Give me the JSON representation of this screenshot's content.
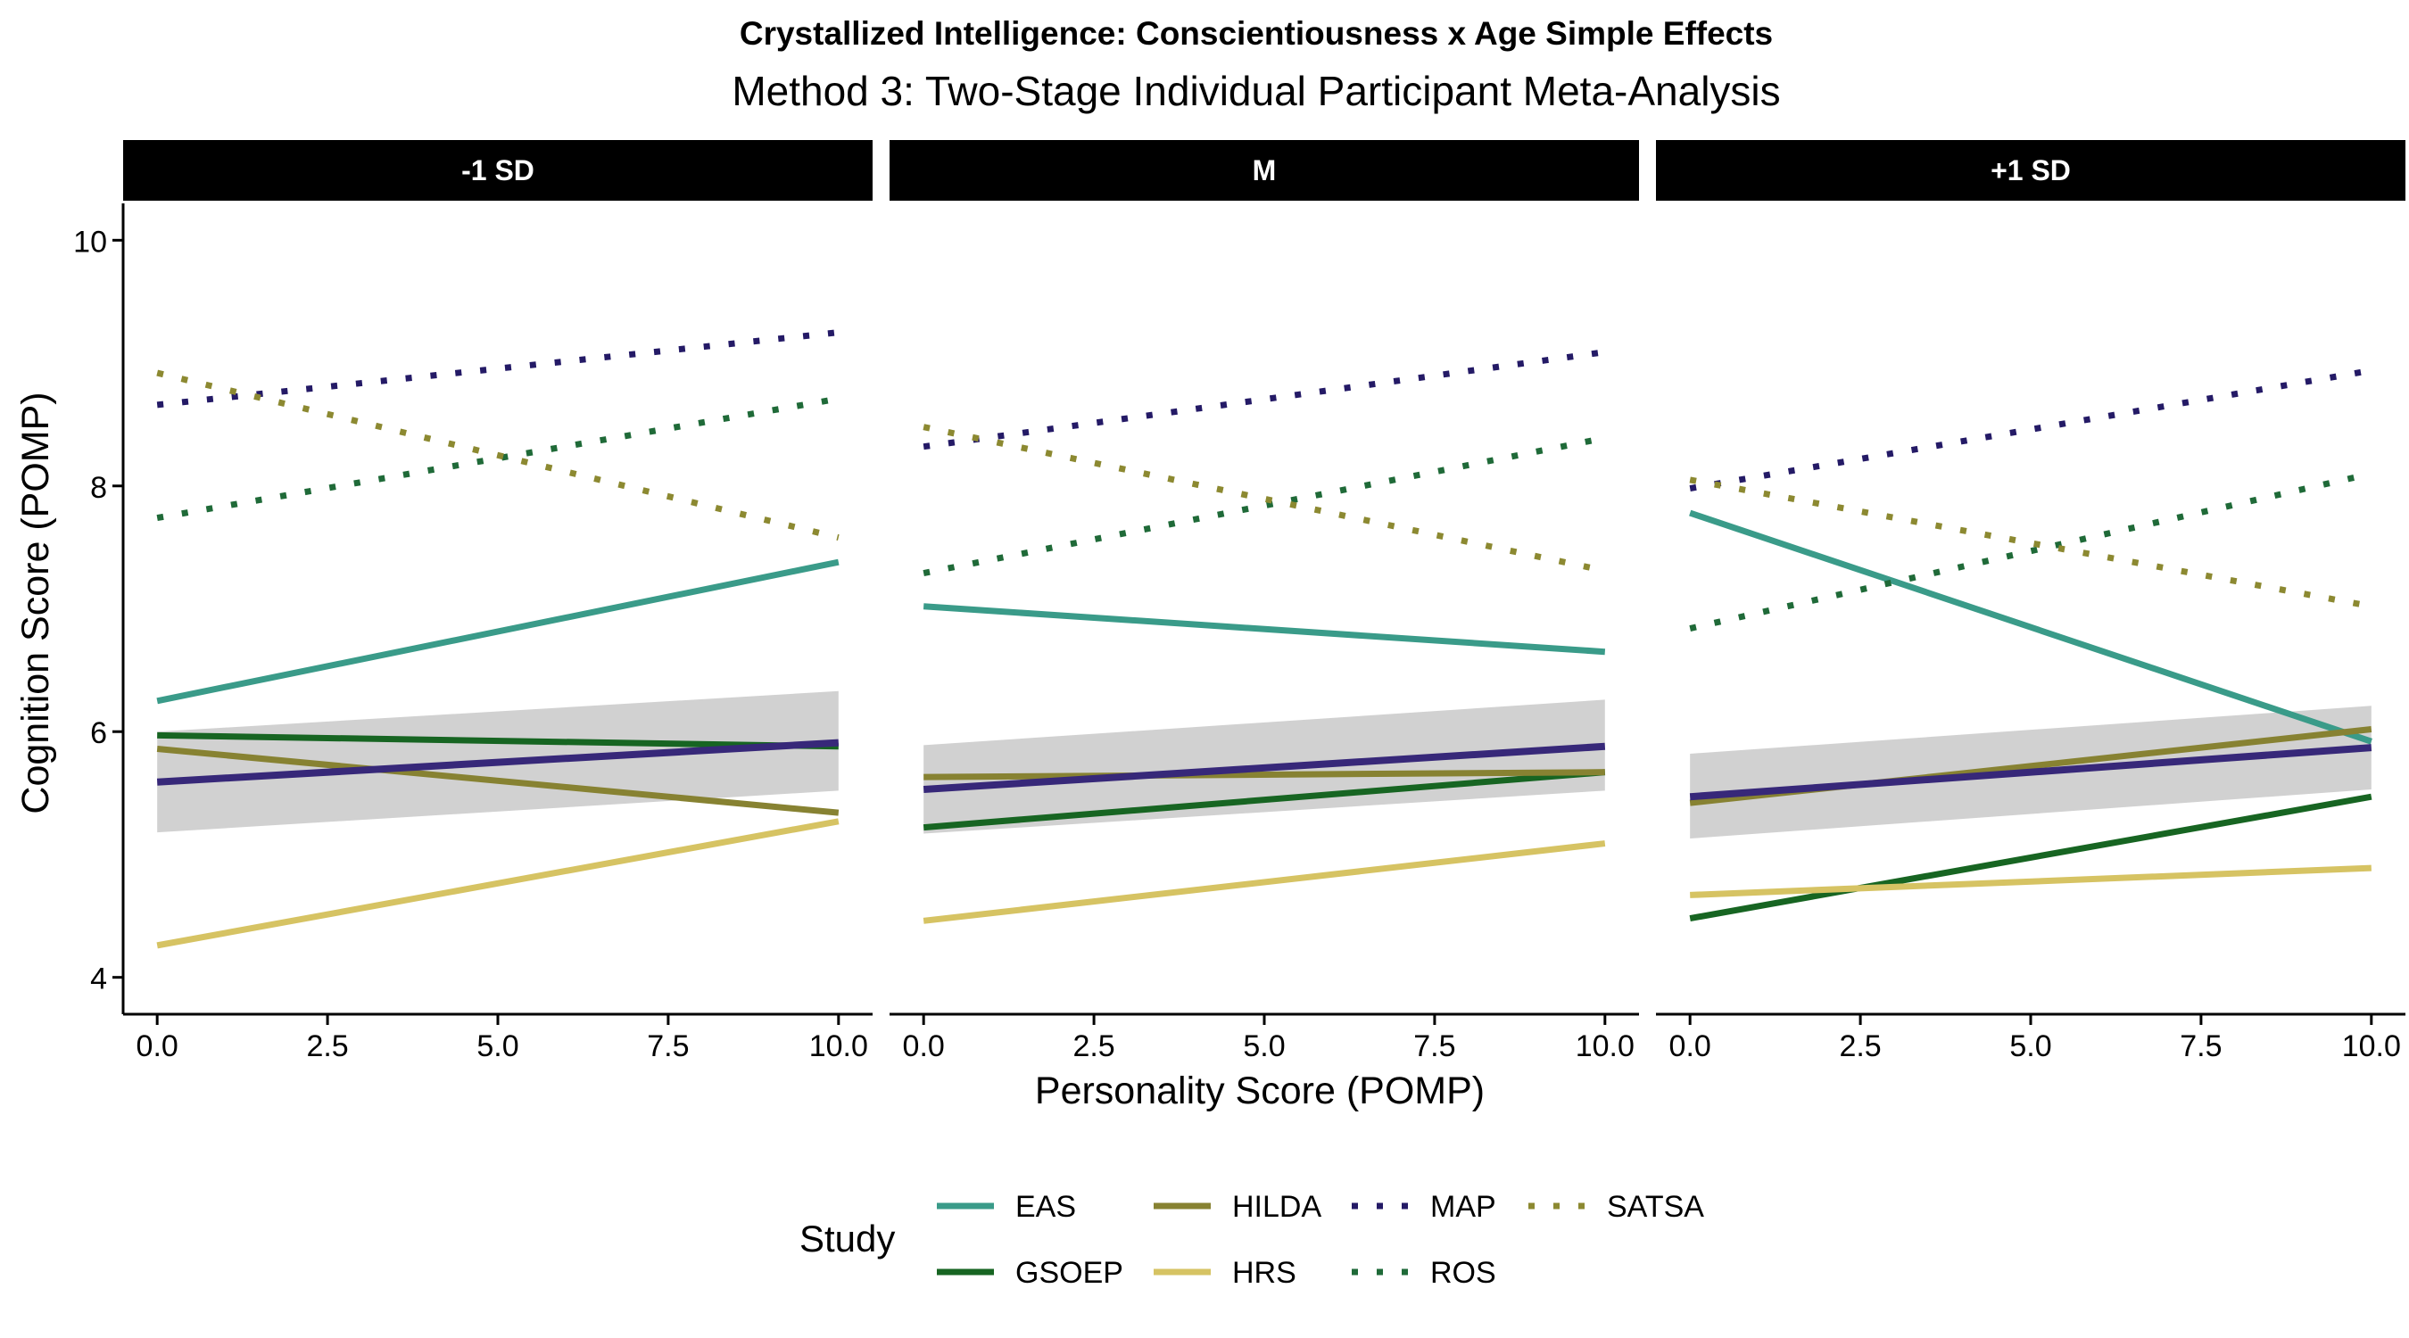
{
  "chart_data": {
    "type": "line",
    "title": "Crystallized Intelligence: Conscientiousness x Age Simple Effects",
    "subtitle": "Method 3: Two-Stage Individual Participant Meta-Analysis",
    "xlabel": "Personality Score (POMP)",
    "ylabel": "Cognition Score (POMP)",
    "xlim": [
      -0.5,
      10.5
    ],
    "ylim": [
      3.7,
      10.3
    ],
    "x_ticks": [
      0,
      2.5,
      5,
      7.5,
      10
    ],
    "x_tick_labels": [
      "0.0",
      "2.5",
      "5.0",
      "7.5",
      "10.0"
    ],
    "y_ticks": [
      4,
      6,
      8,
      10
    ],
    "y_tick_labels": [
      "4",
      "6",
      "8",
      "10"
    ],
    "grid": false,
    "legend": {
      "title": "Study",
      "placement": "bottom",
      "entries": [
        {
          "name": "EAS",
          "color": "#3a9b89",
          "style": "solid"
        },
        {
          "name": "GSOEP",
          "color": "#176522",
          "style": "solid"
        },
        {
          "name": "HILDA",
          "color": "#878232",
          "style": "solid"
        },
        {
          "name": "HRS",
          "color": "#d6c363",
          "style": "solid"
        },
        {
          "name": "MAP",
          "color": "#241a66",
          "style": "dotted"
        },
        {
          "name": "ROS",
          "color": "#1f6a38",
          "style": "dotted"
        },
        {
          "name": "SATSA",
          "color": "#8c8931",
          "style": "dotted"
        }
      ]
    },
    "pooled_style": {
      "color": "#372879",
      "band_color": "#cfcfcf"
    },
    "panels": [
      {
        "label": "-1 SD",
        "series": [
          {
            "name": "EAS",
            "x": [
              0,
              10
            ],
            "y": [
              6.25,
              7.38
            ]
          },
          {
            "name": "GSOEP",
            "x": [
              0,
              10
            ],
            "y": [
              5.97,
              5.88
            ]
          },
          {
            "name": "HILDA",
            "x": [
              0,
              10
            ],
            "y": [
              5.86,
              5.34
            ]
          },
          {
            "name": "HRS",
            "x": [
              0,
              10
            ],
            "y": [
              4.26,
              5.27
            ]
          },
          {
            "name": "MAP",
            "x": [
              0,
              10
            ],
            "y": [
              8.66,
              9.25
            ]
          },
          {
            "name": "ROS",
            "x": [
              0,
              10
            ],
            "y": [
              7.74,
              8.71
            ]
          },
          {
            "name": "SATSA",
            "x": [
              0,
              10
            ],
            "y": [
              8.92,
              7.58
            ]
          }
        ],
        "pooled": {
          "x": [
            0,
            10
          ],
          "y": [
            5.59,
            5.91
          ],
          "lower": [
            5.18,
            5.52
          ],
          "upper": [
            6.0,
            6.33
          ]
        }
      },
      {
        "label": "M",
        "series": [
          {
            "name": "EAS",
            "x": [
              0,
              10
            ],
            "y": [
              7.02,
              6.65
            ]
          },
          {
            "name": "GSOEP",
            "x": [
              0,
              10
            ],
            "y": [
              5.22,
              5.67
            ]
          },
          {
            "name": "HILDA",
            "x": [
              0,
              10
            ],
            "y": [
              5.63,
              5.67
            ]
          },
          {
            "name": "HRS",
            "x": [
              0,
              10
            ],
            "y": [
              4.46,
              5.09
            ]
          },
          {
            "name": "MAP",
            "x": [
              0,
              10
            ],
            "y": [
              8.32,
              9.09
            ]
          },
          {
            "name": "ROS",
            "x": [
              0,
              10
            ],
            "y": [
              7.29,
              8.39
            ]
          },
          {
            "name": "SATSA",
            "x": [
              0,
              10
            ],
            "y": [
              8.48,
              7.31
            ]
          }
        ],
        "pooled": {
          "x": [
            0,
            10
          ],
          "y": [
            5.53,
            5.88
          ],
          "lower": [
            5.17,
            5.52
          ],
          "upper": [
            5.89,
            6.26
          ]
        }
      },
      {
        "label": "+1 SD",
        "series": [
          {
            "name": "EAS",
            "x": [
              0,
              10
            ],
            "y": [
              7.78,
              5.92
            ]
          },
          {
            "name": "GSOEP",
            "x": [
              0,
              10
            ],
            "y": [
              4.48,
              5.47
            ]
          },
          {
            "name": "HILDA",
            "x": [
              0,
              10
            ],
            "y": [
              5.42,
              6.02
            ]
          },
          {
            "name": "HRS",
            "x": [
              0,
              10
            ],
            "y": [
              4.67,
              4.89
            ]
          },
          {
            "name": "MAP",
            "x": [
              0,
              10
            ],
            "y": [
              7.98,
              8.94
            ]
          },
          {
            "name": "ROS",
            "x": [
              0,
              10
            ],
            "y": [
              6.84,
              8.1
            ]
          },
          {
            "name": "SATSA",
            "x": [
              0,
              10
            ],
            "y": [
              8.05,
              7.02
            ]
          }
        ],
        "pooled": {
          "x": [
            0,
            10
          ],
          "y": [
            5.47,
            5.87
          ],
          "lower": [
            5.13,
            5.53
          ],
          "upper": [
            5.82,
            6.21
          ]
        }
      }
    ]
  }
}
